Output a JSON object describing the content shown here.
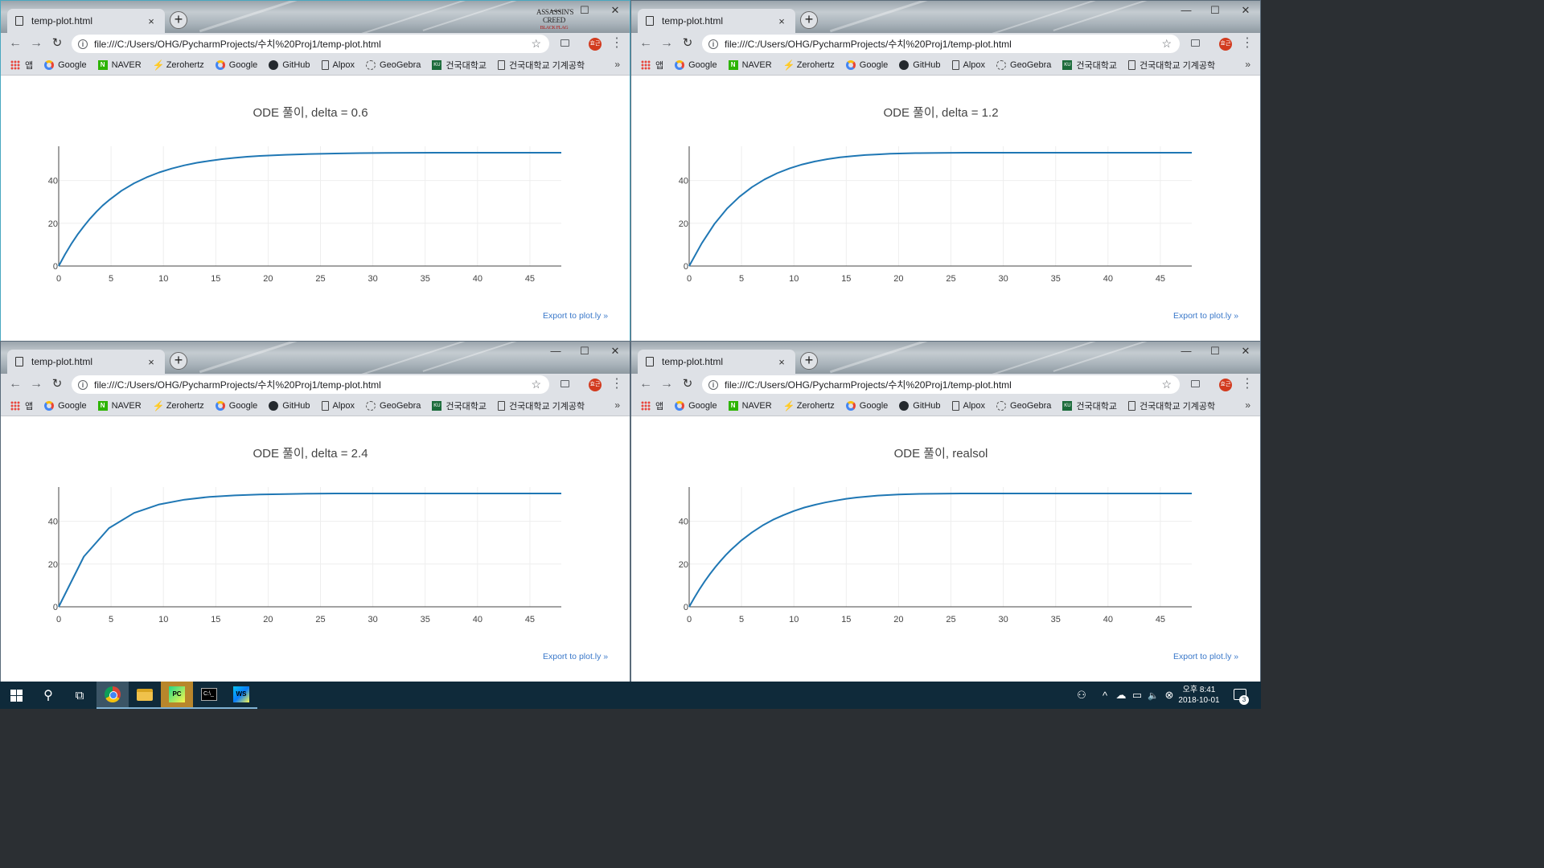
{
  "browser": {
    "tab_title": "temp-plot.html",
    "tab_close": "×",
    "new_tab": "+",
    "url": "file:///C:/Users/OHG/PycharmProjects/수치%20Proj1/temp-plot.html",
    "star": "☆",
    "minimize": "—",
    "maximize": "☐",
    "close": "✕",
    "back": "←",
    "forward": "→",
    "reload": "↻",
    "info": "i",
    "menu": "⋮",
    "profile": "효근",
    "brand_logo_top": "ASSASSIN'S",
    "brand_logo_mid": "CREED",
    "brand_logo_sub": "BLACK FLAG",
    "bookmarks_more": "»",
    "bookmarks": [
      {
        "icon": "apps-icon",
        "label": "앱"
      },
      {
        "icon": "google-icon",
        "label": "Google"
      },
      {
        "icon": "naver-icon",
        "label": "NAVER",
        "glyph": "N"
      },
      {
        "icon": "zerohertz-icon",
        "label": "Zerohertz",
        "glyph": "⚡"
      },
      {
        "icon": "google-icon",
        "label": "Google"
      },
      {
        "icon": "github-icon",
        "label": "GitHub"
      },
      {
        "icon": "document-icon",
        "label": "Alpox"
      },
      {
        "icon": "geogebra-icon",
        "label": "GeoGebra"
      },
      {
        "icon": "konkuk-icon",
        "label": "건국대학교",
        "glyph": "KU"
      },
      {
        "icon": "document-icon",
        "label": "건국대학교 기계공학"
      }
    ]
  },
  "plot_common": {
    "export_link": "Export to plot.ly »",
    "line_color": "#1f77b4",
    "grid_color": "#eeeeee",
    "axis_color": "#444444"
  },
  "windows": [
    {
      "plot_title": "ODE 풀이, delta = 0.6",
      "show_brand": true
    },
    {
      "plot_title": "ODE 풀이, delta = 1.2",
      "show_brand": false
    },
    {
      "plot_title": "ODE 풀이, delta = 2.4",
      "show_brand": false
    },
    {
      "plot_title": "ODE 풀이, realsol",
      "show_brand": false
    }
  ],
  "chart_data": [
    {
      "type": "line",
      "title": "ODE 풀이, delta = 0.6",
      "xlabel": "",
      "ylabel": "",
      "xlim": [
        0,
        48
      ],
      "ylim": [
        0,
        56
      ],
      "xticks": [
        0,
        5,
        10,
        15,
        20,
        25,
        30,
        35,
        40,
        45
      ],
      "yticks": [
        0,
        20,
        40
      ],
      "series": [
        {
          "x": [
            0,
            0.6,
            1.2,
            1.8,
            2.4,
            3,
            3.6,
            4.2,
            4.8,
            6,
            7.2,
            8.4,
            9.6,
            10.8,
            12,
            13.2,
            14.4,
            15.6,
            16.8,
            18,
            19.2,
            21.6,
            24,
            26.4,
            28.8,
            31.2,
            36,
            40.8,
            45.6,
            48
          ],
          "y": [
            0,
            5.4,
            10.3,
            14.7,
            18.6,
            22.2,
            25.4,
            28.3,
            30.8,
            35.2,
            38.7,
            41.5,
            43.8,
            45.6,
            47.1,
            48.3,
            49.2,
            50.0,
            50.6,
            51.1,
            51.5,
            52.0,
            52.4,
            52.6,
            52.8,
            52.9,
            53.0,
            53.0,
            53.0,
            53.0
          ]
        }
      ]
    },
    {
      "type": "line",
      "title": "ODE 풀이, delta = 1.2",
      "xlabel": "",
      "ylabel": "",
      "xlim": [
        0,
        48
      ],
      "ylim": [
        0,
        56
      ],
      "xticks": [
        0,
        5,
        10,
        15,
        20,
        25,
        30,
        35,
        40,
        45
      ],
      "yticks": [
        0,
        20,
        40
      ],
      "series": [
        {
          "x": [
            0,
            1.2,
            2.4,
            3.6,
            4.8,
            6,
            7.2,
            8.4,
            9.6,
            10.8,
            12,
            13.2,
            14.4,
            15.6,
            16.8,
            18,
            19.2,
            21.6,
            24,
            26.4,
            28.8,
            31.2,
            36,
            40.8,
            45.6,
            48
          ],
          "y": [
            0,
            10.6,
            19.6,
            26.8,
            32.4,
            36.9,
            40.5,
            43.4,
            45.7,
            47.5,
            48.9,
            50.0,
            50.8,
            51.4,
            51.9,
            52.2,
            52.5,
            52.8,
            52.9,
            53.0,
            53.0,
            53.0,
            53.0,
            53.0,
            53.0,
            53.0
          ]
        }
      ]
    },
    {
      "type": "line",
      "title": "ODE 풀이, delta = 2.4",
      "xlabel": "",
      "ylabel": "",
      "xlim": [
        0,
        48
      ],
      "ylim": [
        0,
        56
      ],
      "xticks": [
        0,
        5,
        10,
        15,
        20,
        25,
        30,
        35,
        40,
        45
      ],
      "yticks": [
        0,
        20,
        40
      ],
      "series": [
        {
          "x": [
            0,
            2.4,
            4.8,
            7.2,
            9.6,
            12,
            14.4,
            16.8,
            19.2,
            21.6,
            24,
            26.4,
            28.8,
            31.2,
            33.6,
            36,
            38.4,
            40.8,
            43.2,
            45.6,
            48
          ],
          "y": [
            0,
            23.5,
            36.8,
            43.9,
            47.9,
            50.1,
            51.4,
            52.1,
            52.5,
            52.7,
            52.9,
            53.0,
            53.0,
            53.0,
            53.0,
            53.0,
            53.0,
            53.0,
            53.0,
            53.0,
            53.0
          ]
        }
      ]
    },
    {
      "type": "line",
      "title": "ODE 풀이, realsol",
      "xlabel": "",
      "ylabel": "",
      "xlim": [
        0,
        48
      ],
      "ylim": [
        0,
        56
      ],
      "xticks": [
        0,
        5,
        10,
        15,
        20,
        25,
        30,
        35,
        40,
        45
      ],
      "yticks": [
        0,
        20,
        40
      ],
      "series": [
        {
          "x": [
            0,
            0.5,
            1,
            1.5,
            2,
            2.5,
            3,
            3.5,
            4,
            5,
            6,
            7,
            8,
            9,
            10,
            11,
            12,
            13,
            14,
            15,
            16,
            18,
            20,
            22,
            24,
            26,
            28,
            30,
            34,
            38,
            42,
            46,
            48
          ],
          "y": [
            0,
            4.3,
            8.3,
            12.0,
            15.4,
            18.6,
            21.5,
            24.2,
            26.7,
            31.1,
            34.8,
            38.0,
            40.7,
            42.9,
            44.8,
            46.4,
            47.7,
            48.8,
            49.7,
            50.5,
            51.1,
            52.0,
            52.5,
            52.8,
            52.9,
            53.0,
            53.0,
            53.0,
            53.0,
            53.0,
            53.0,
            53.0,
            53.0
          ]
        }
      ]
    }
  ],
  "taskbar": {
    "search_glyph": "⚲",
    "taskview_glyph": "⧉",
    "pycharm_label": "PC",
    "cmd_label": "C:\\_",
    "webstorm_label": "WS",
    "tray_person": "⚇",
    "tray_caret": "^",
    "tray_cloud": "☁",
    "tray_battery": "▭",
    "tray_volume": "🔈",
    "tray_x": "⊗",
    "time": "오후 8:41",
    "date": "2018-10-01",
    "notif_count": "3"
  }
}
